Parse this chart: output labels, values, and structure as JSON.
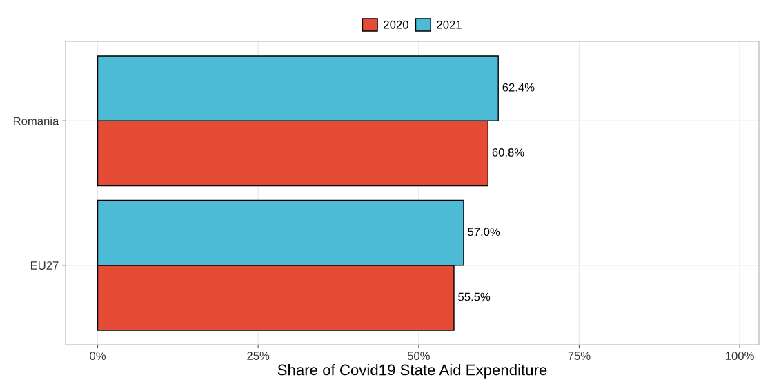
{
  "chart_data": {
    "type": "bar",
    "orientation": "horizontal",
    "xlabel": "Share of Covid19 State Aid Expenditure",
    "categories": [
      "Romania",
      "EU27"
    ],
    "series": [
      {
        "name": "2020",
        "color": "#e64b35",
        "values": [
          60.8,
          55.5
        ],
        "value_labels": [
          "60.8%",
          "55.5%"
        ]
      },
      {
        "name": "2021",
        "color": "#4dbbd5",
        "values": [
          62.4,
          57.0
        ],
        "value_labels": [
          "62.4%",
          "57.0%"
        ]
      }
    ],
    "xlim": [
      -5,
      103
    ],
    "xticks": [
      {
        "value": 0,
        "label": "0%"
      },
      {
        "value": 25,
        "label": "25%"
      },
      {
        "value": 50,
        "label": "50%"
      },
      {
        "value": 75,
        "label": "75%"
      },
      {
        "value": 100,
        "label": "100%"
      }
    ],
    "grid": true,
    "legend": "top"
  }
}
